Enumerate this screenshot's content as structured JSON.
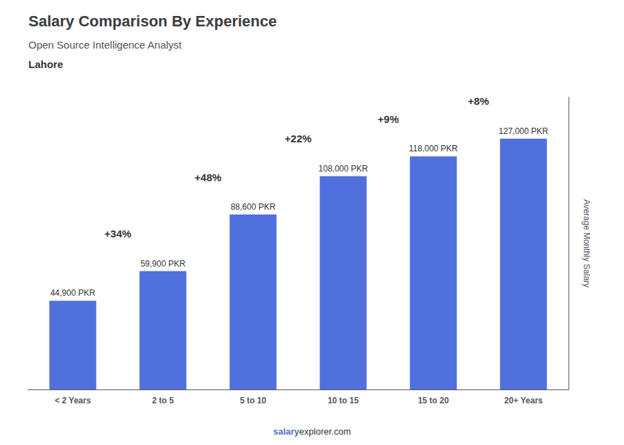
{
  "chart_data": {
    "type": "bar",
    "title": "Salary Comparison By Experience",
    "subtitle": "Open Source Intelligence Analyst",
    "city": "Lahore",
    "ylabel": "Average Monthly Salary",
    "footer": [
      "salary",
      "explorer.com"
    ],
    "categories": [
      "< 2 Years",
      "2 to 5",
      "5 to 10",
      "10 to 15",
      "15 to 20",
      "20+ Years"
    ],
    "values": [
      44900,
      59900,
      88600,
      108000,
      118000,
      127000
    ],
    "value_labels": [
      "44,900 PKR",
      "59,900 PKR",
      "88,600 PKR",
      "108,000 PKR",
      "118,000 PKR",
      "127,000 PKR"
    ],
    "data_labels": true,
    "annotations": [
      null,
      "+34%",
      "+48%",
      "+22%",
      "+9%",
      "+8%"
    ],
    "ylim": [
      0,
      148000
    ],
    "tick_labels": "x",
    "grid": false
  }
}
